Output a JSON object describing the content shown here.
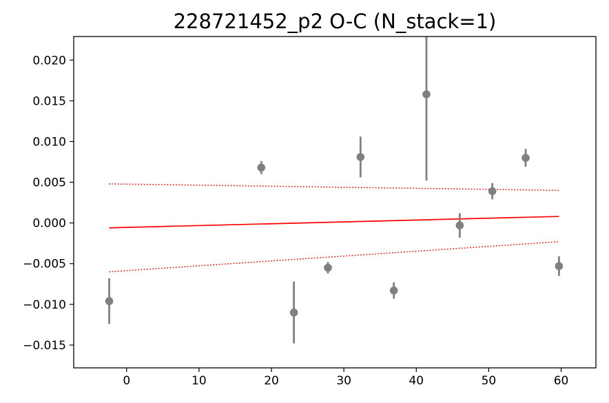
{
  "chart_data": {
    "type": "scatter",
    "title": "228721452_p2 O-C (N_stack=1)",
    "xlabel": "",
    "ylabel": "",
    "xlim": [
      -7.3,
      64.8
    ],
    "ylim": [
      -0.0178,
      0.0229
    ],
    "xticks": [
      0,
      10,
      20,
      30,
      40,
      50,
      60
    ],
    "xtick_labels": [
      "0",
      "10",
      "20",
      "30",
      "40",
      "50",
      "60"
    ],
    "yticks": [
      -0.015,
      -0.01,
      -0.005,
      0.0,
      0.005,
      0.01,
      0.015,
      0.02
    ],
    "ytick_labels": [
      "−0.015",
      "−0.010",
      "−0.005",
      "0.000",
      "0.005",
      "0.010",
      "0.015",
      "0.020"
    ],
    "grid": false,
    "points": [
      {
        "x": -2.4,
        "y": -0.0096,
        "err": 0.0028
      },
      {
        "x": 18.6,
        "y": 0.0068,
        "err": 0.0008
      },
      {
        "x": 23.1,
        "y": -0.011,
        "err": 0.0038
      },
      {
        "x": 27.8,
        "y": -0.0055,
        "err": 0.0007
      },
      {
        "x": 32.3,
        "y": 0.0081,
        "err": 0.0025
      },
      {
        "x": 36.9,
        "y": -0.0083,
        "err": 0.001
      },
      {
        "x": 41.4,
        "y": 0.0158,
        "err": 0.0106
      },
      {
        "x": 46.0,
        "y": -0.0003,
        "err": 0.0015
      },
      {
        "x": 50.5,
        "y": 0.0039,
        "err": 0.001
      },
      {
        "x": 55.1,
        "y": 0.008,
        "err": 0.0011
      },
      {
        "x": 59.7,
        "y": -0.0053,
        "err": 0.0012
      }
    ],
    "fit": {
      "x": [
        -2.4,
        59.7
      ],
      "y": [
        -0.0006,
        0.0008
      ],
      "upper": [
        0.0048,
        0.004
      ],
      "lower": [
        -0.006,
        -0.0023
      ]
    },
    "colors": {
      "points": "#808080",
      "fit": "#ff0000",
      "axes": "#000000"
    }
  }
}
